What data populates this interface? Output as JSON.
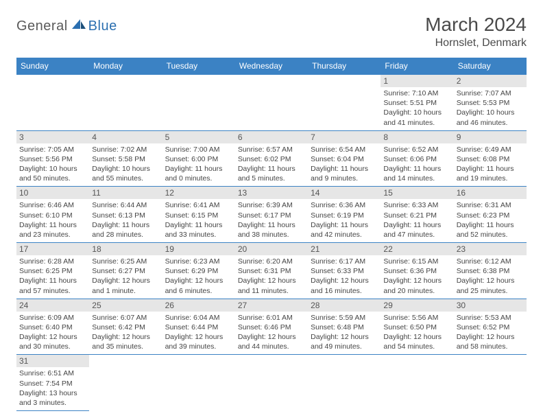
{
  "logo": {
    "general": "General",
    "blue": "Blue"
  },
  "header": {
    "month": "March 2024",
    "location": "Hornslet, Denmark"
  },
  "colors": {
    "header_bg": "#3b82c4",
    "header_text": "#ffffff",
    "daynum_bg": "#e6e6e6",
    "border": "#3b82c4",
    "text": "#444444",
    "logo_gray": "#5a5a5a",
    "logo_blue": "#2b6fb0"
  },
  "dayNames": [
    "Sunday",
    "Monday",
    "Tuesday",
    "Wednesday",
    "Thursday",
    "Friday",
    "Saturday"
  ],
  "days": [
    {
      "n": "1",
      "sr": "7:10 AM",
      "ss": "5:51 PM",
      "dl1": "10 hours",
      "dl2": "and 41 minutes."
    },
    {
      "n": "2",
      "sr": "7:07 AM",
      "ss": "5:53 PM",
      "dl1": "10 hours",
      "dl2": "and 46 minutes."
    },
    {
      "n": "3",
      "sr": "7:05 AM",
      "ss": "5:56 PM",
      "dl1": "10 hours",
      "dl2": "and 50 minutes."
    },
    {
      "n": "4",
      "sr": "7:02 AM",
      "ss": "5:58 PM",
      "dl1": "10 hours",
      "dl2": "and 55 minutes."
    },
    {
      "n": "5",
      "sr": "7:00 AM",
      "ss": "6:00 PM",
      "dl1": "11 hours",
      "dl2": "and 0 minutes."
    },
    {
      "n": "6",
      "sr": "6:57 AM",
      "ss": "6:02 PM",
      "dl1": "11 hours",
      "dl2": "and 5 minutes."
    },
    {
      "n": "7",
      "sr": "6:54 AM",
      "ss": "6:04 PM",
      "dl1": "11 hours",
      "dl2": "and 9 minutes."
    },
    {
      "n": "8",
      "sr": "6:52 AM",
      "ss": "6:06 PM",
      "dl1": "11 hours",
      "dl2": "and 14 minutes."
    },
    {
      "n": "9",
      "sr": "6:49 AM",
      "ss": "6:08 PM",
      "dl1": "11 hours",
      "dl2": "and 19 minutes."
    },
    {
      "n": "10",
      "sr": "6:46 AM",
      "ss": "6:10 PM",
      "dl1": "11 hours",
      "dl2": "and 23 minutes."
    },
    {
      "n": "11",
      "sr": "6:44 AM",
      "ss": "6:13 PM",
      "dl1": "11 hours",
      "dl2": "and 28 minutes."
    },
    {
      "n": "12",
      "sr": "6:41 AM",
      "ss": "6:15 PM",
      "dl1": "11 hours",
      "dl2": "and 33 minutes."
    },
    {
      "n": "13",
      "sr": "6:39 AM",
      "ss": "6:17 PM",
      "dl1": "11 hours",
      "dl2": "and 38 minutes."
    },
    {
      "n": "14",
      "sr": "6:36 AM",
      "ss": "6:19 PM",
      "dl1": "11 hours",
      "dl2": "and 42 minutes."
    },
    {
      "n": "15",
      "sr": "6:33 AM",
      "ss": "6:21 PM",
      "dl1": "11 hours",
      "dl2": "and 47 minutes."
    },
    {
      "n": "16",
      "sr": "6:31 AM",
      "ss": "6:23 PM",
      "dl1": "11 hours",
      "dl2": "and 52 minutes."
    },
    {
      "n": "17",
      "sr": "6:28 AM",
      "ss": "6:25 PM",
      "dl1": "11 hours",
      "dl2": "and 57 minutes."
    },
    {
      "n": "18",
      "sr": "6:25 AM",
      "ss": "6:27 PM",
      "dl1": "12 hours",
      "dl2": "and 1 minute."
    },
    {
      "n": "19",
      "sr": "6:23 AM",
      "ss": "6:29 PM",
      "dl1": "12 hours",
      "dl2": "and 6 minutes."
    },
    {
      "n": "20",
      "sr": "6:20 AM",
      "ss": "6:31 PM",
      "dl1": "12 hours",
      "dl2": "and 11 minutes."
    },
    {
      "n": "21",
      "sr": "6:17 AM",
      "ss": "6:33 PM",
      "dl1": "12 hours",
      "dl2": "and 16 minutes."
    },
    {
      "n": "22",
      "sr": "6:15 AM",
      "ss": "6:36 PM",
      "dl1": "12 hours",
      "dl2": "and 20 minutes."
    },
    {
      "n": "23",
      "sr": "6:12 AM",
      "ss": "6:38 PM",
      "dl1": "12 hours",
      "dl2": "and 25 minutes."
    },
    {
      "n": "24",
      "sr": "6:09 AM",
      "ss": "6:40 PM",
      "dl1": "12 hours",
      "dl2": "and 30 minutes."
    },
    {
      "n": "25",
      "sr": "6:07 AM",
      "ss": "6:42 PM",
      "dl1": "12 hours",
      "dl2": "and 35 minutes."
    },
    {
      "n": "26",
      "sr": "6:04 AM",
      "ss": "6:44 PM",
      "dl1": "12 hours",
      "dl2": "and 39 minutes."
    },
    {
      "n": "27",
      "sr": "6:01 AM",
      "ss": "6:46 PM",
      "dl1": "12 hours",
      "dl2": "and 44 minutes."
    },
    {
      "n": "28",
      "sr": "5:59 AM",
      "ss": "6:48 PM",
      "dl1": "12 hours",
      "dl2": "and 49 minutes."
    },
    {
      "n": "29",
      "sr": "5:56 AM",
      "ss": "6:50 PM",
      "dl1": "12 hours",
      "dl2": "and 54 minutes."
    },
    {
      "n": "30",
      "sr": "5:53 AM",
      "ss": "6:52 PM",
      "dl1": "12 hours",
      "dl2": "and 58 minutes."
    },
    {
      "n": "31",
      "sr": "6:51 AM",
      "ss": "7:54 PM",
      "dl1": "13 hours",
      "dl2": "and 3 minutes."
    }
  ],
  "labels": {
    "sunrise": "Sunrise:",
    "sunset": "Sunset:",
    "daylight": "Daylight:"
  },
  "layout": {
    "startOffset": 5,
    "cols": 7
  }
}
